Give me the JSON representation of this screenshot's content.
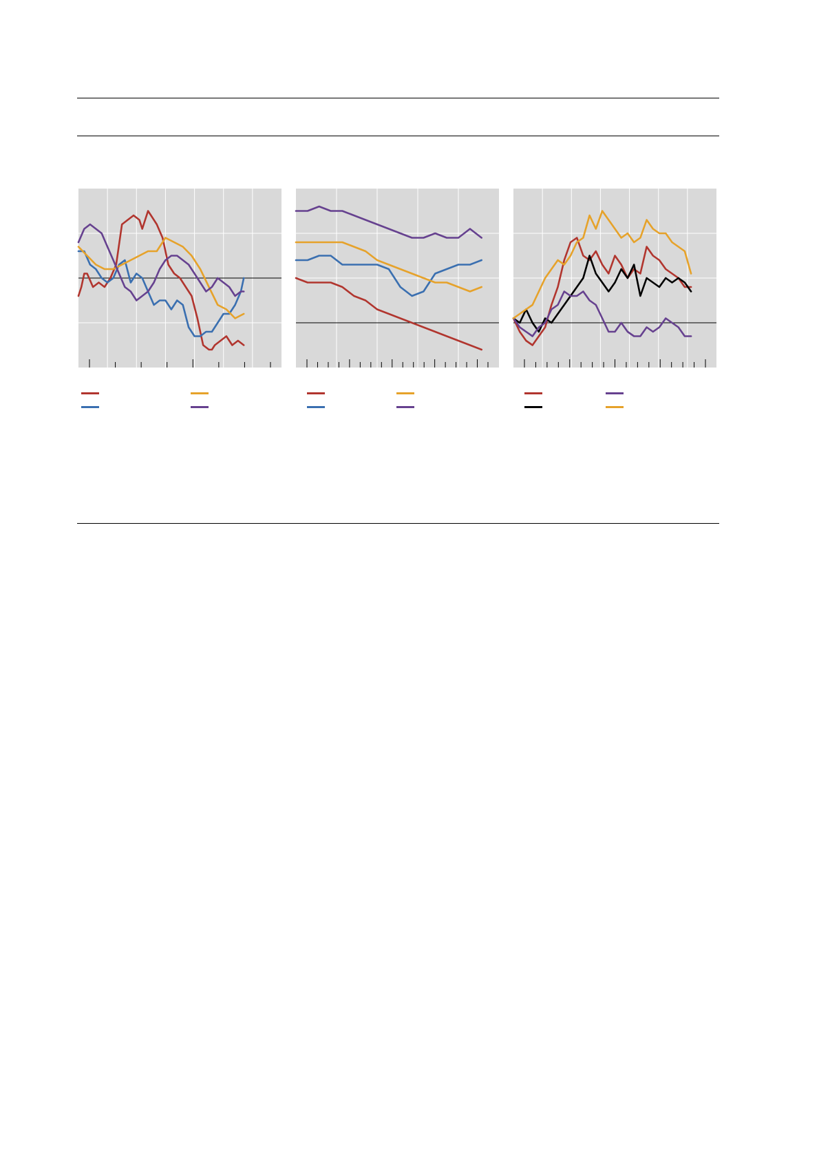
{
  "page": {
    "title": "",
    "subtitle": ""
  },
  "colors": {
    "plot_bg": "#d9d9d9",
    "grid": "#ffffff",
    "axis": "#000000",
    "red": "#b1352e",
    "blue": "#3a6fb0",
    "orange": "#e6a22a",
    "purple": "#66418f",
    "black": "#000000"
  },
  "chart_data": [
    {
      "type": "line",
      "title": "",
      "xlabel": "",
      "ylabel": "",
      "xlim": [
        0,
        7
      ],
      "ylim": [
        -2,
        2
      ],
      "baseline": 0,
      "grid": true,
      "legend": "bottom",
      "series": [
        {
          "name": "",
          "color": "red",
          "x": [
            0,
            0.1,
            0.2,
            0.3,
            0.5,
            0.7,
            0.9,
            1.1,
            1.3,
            1.5,
            1.7,
            1.9,
            2.1,
            2.2,
            2.4,
            2.5,
            2.7,
            2.9,
            3.1,
            3.3,
            3.5,
            3.7,
            3.9,
            4.1,
            4.3,
            4.5,
            4.6,
            4.7,
            4.9,
            5.1,
            5.3,
            5.5,
            5.7
          ],
          "y": [
            -0.4,
            -0.2,
            0.1,
            0.1,
            -0.2,
            -0.1,
            -0.2,
            0,
            0.3,
            1.2,
            1.3,
            1.4,
            1.3,
            1.1,
            1.5,
            1.4,
            1.2,
            0.9,
            0.3,
            0.1,
            0,
            -0.2,
            -0.4,
            -0.9,
            -1.5,
            -1.6,
            -1.6,
            -1.5,
            -1.4,
            -1.3,
            -1.5,
            -1.4,
            -1.5
          ]
        },
        {
          "name": "",
          "color": "blue",
          "x": [
            0,
            0.2,
            0.4,
            0.6,
            0.8,
            1,
            1.2,
            1.4,
            1.6,
            1.8,
            2,
            2.2,
            2.4,
            2.6,
            2.8,
            3,
            3.2,
            3.4,
            3.6,
            3.8,
            4,
            4.2,
            4.4,
            4.6,
            4.8,
            5,
            5.2,
            5.4,
            5.6,
            5.7
          ],
          "y": [
            0.6,
            0.6,
            0.3,
            0.2,
            0,
            -0.1,
            0,
            0.3,
            0.4,
            -0.1,
            0.1,
            0,
            -0.3,
            -0.6,
            -0.5,
            -0.5,
            -0.7,
            -0.5,
            -0.6,
            -1.1,
            -1.3,
            -1.3,
            -1.2,
            -1.2,
            -1.0,
            -0.8,
            -0.8,
            -0.6,
            -0.3,
            0
          ]
        },
        {
          "name": "",
          "color": "orange",
          "x": [
            0,
            0.3,
            0.6,
            0.9,
            1.2,
            1.5,
            1.8,
            2.1,
            2.4,
            2.7,
            3,
            3.3,
            3.6,
            3.9,
            4.2,
            4.5,
            4.8,
            5.1,
            5.4,
            5.7
          ],
          "y": [
            0.7,
            0.5,
            0.3,
            0.2,
            0.2,
            0.3,
            0.4,
            0.5,
            0.6,
            0.6,
            0.9,
            0.8,
            0.7,
            0.5,
            0.2,
            -0.2,
            -0.6,
            -0.7,
            -0.9,
            -0.8
          ]
        },
        {
          "name": "",
          "color": "purple",
          "x": [
            0,
            0.2,
            0.4,
            0.6,
            0.8,
            1,
            1.2,
            1.4,
            1.6,
            1.8,
            2,
            2.2,
            2.4,
            2.6,
            2.8,
            3,
            3.2,
            3.4,
            3.6,
            3.8,
            4,
            4.2,
            4.4,
            4.6,
            4.8,
            5,
            5.2,
            5.4,
            5.6,
            5.7
          ],
          "y": [
            0.8,
            1.1,
            1.2,
            1.1,
            1.0,
            0.7,
            0.4,
            0.1,
            -0.2,
            -0.3,
            -0.5,
            -0.4,
            -0.3,
            -0.1,
            0.2,
            0.4,
            0.5,
            0.5,
            0.4,
            0.3,
            0.1,
            -0.1,
            -0.3,
            -0.2,
            0,
            -0.1,
            -0.2,
            -0.4,
            -0.3,
            -0.3
          ]
        }
      ]
    },
    {
      "type": "line",
      "title": "",
      "xlabel": "",
      "ylabel": "",
      "xlim": [
        0,
        17.5
      ],
      "ylim": [
        -2,
        2
      ],
      "baseline": -1,
      "grid": true,
      "legend": "bottom",
      "series": [
        {
          "name": "",
          "color": "red",
          "x": [
            0,
            1,
            2,
            3,
            4,
            5,
            6,
            7,
            8,
            9,
            10,
            11,
            12,
            13,
            14,
            15,
            16
          ],
          "y": [
            0,
            -0.1,
            -0.1,
            -0.1,
            -0.2,
            -0.4,
            -0.5,
            -0.7,
            -0.8,
            -0.9,
            -1.0,
            -1.1,
            -1.2,
            -1.3,
            -1.4,
            -1.5,
            -1.6
          ]
        },
        {
          "name": "",
          "color": "blue",
          "x": [
            0,
            1,
            2,
            3,
            4,
            5,
            6,
            7,
            8,
            9,
            10,
            11,
            12,
            13,
            14,
            15,
            16
          ],
          "y": [
            0.4,
            0.4,
            0.5,
            0.5,
            0.3,
            0.3,
            0.3,
            0.3,
            0.2,
            -0.2,
            -0.4,
            -0.3,
            0.1,
            0.2,
            0.3,
            0.3,
            0.4
          ]
        },
        {
          "name": "",
          "color": "orange",
          "x": [
            0,
            1,
            2,
            3,
            4,
            5,
            6,
            7,
            8,
            9,
            10,
            11,
            12,
            13,
            14,
            15,
            16
          ],
          "y": [
            0.8,
            0.8,
            0.8,
            0.8,
            0.8,
            0.7,
            0.6,
            0.4,
            0.3,
            0.2,
            0.1,
            0,
            -0.1,
            -0.1,
            -0.2,
            -0.3,
            -0.2
          ]
        },
        {
          "name": "",
          "color": "purple",
          "x": [
            0,
            1,
            2,
            3,
            4,
            5,
            6,
            7,
            8,
            9,
            10,
            11,
            12,
            13,
            14,
            15,
            16
          ],
          "y": [
            1.5,
            1.5,
            1.6,
            1.5,
            1.5,
            1.4,
            1.3,
            1.2,
            1.1,
            1.0,
            0.9,
            0.9,
            1.0,
            0.9,
            0.9,
            1.1,
            0.9
          ]
        }
      ]
    },
    {
      "type": "line",
      "title": "",
      "xlabel": "",
      "ylabel": "",
      "xlim": [
        0,
        16
      ],
      "ylim": [
        -2,
        2
      ],
      "baseline": -1,
      "grid": true,
      "legend": "bottom",
      "series": [
        {
          "name": "",
          "color": "red",
          "x": [
            0,
            0.5,
            1,
            1.5,
            2,
            2.5,
            3,
            3.5,
            4,
            4.5,
            5,
            5.5,
            6,
            6.5,
            7,
            7.5,
            8,
            8.5,
            9,
            9.5,
            10,
            10.5,
            11,
            11.5,
            12,
            12.5,
            13,
            13.5,
            14
          ],
          "y": [
            -0.9,
            -1.2,
            -1.4,
            -1.5,
            -1.3,
            -1.1,
            -0.6,
            -0.2,
            0.4,
            0.8,
            0.9,
            0.5,
            0.4,
            0.6,
            0.3,
            0.1,
            0.5,
            0.3,
            0,
            0.2,
            0.1,
            0.7,
            0.5,
            0.4,
            0.2,
            0.1,
            0,
            -0.2,
            -0.2
          ]
        },
        {
          "name": "",
          "color": "black",
          "x": [
            0,
            0.5,
            1,
            1.5,
            2,
            2.5,
            3,
            3.5,
            4,
            4.5,
            5,
            5.5,
            6,
            6.5,
            7,
            7.5,
            8,
            8.5,
            9,
            9.5,
            10,
            10.5,
            11,
            11.5,
            12,
            12.5,
            13,
            13.5,
            14
          ],
          "y": [
            -0.9,
            -1.0,
            -0.7,
            -1.0,
            -1.2,
            -0.9,
            -1.0,
            -0.8,
            -0.6,
            -0.4,
            -0.2,
            0,
            0.5,
            0.1,
            -0.1,
            -0.3,
            -0.1,
            0.2,
            0,
            0.3,
            -0.4,
            0,
            -0.1,
            -0.2,
            0,
            -0.1,
            0,
            -0.1,
            -0.3
          ]
        },
        {
          "name": "",
          "color": "purple",
          "x": [
            0,
            0.5,
            1,
            1.5,
            2,
            2.5,
            3,
            3.5,
            4,
            4.5,
            5,
            5.5,
            6,
            6.5,
            7,
            7.5,
            8,
            8.5,
            9,
            9.5,
            10,
            10.5,
            11,
            11.5,
            12,
            12.5,
            13,
            13.5,
            14
          ],
          "y": [
            -0.9,
            -1.1,
            -1.2,
            -1.3,
            -1.1,
            -1.0,
            -0.7,
            -0.6,
            -0.3,
            -0.4,
            -0.4,
            -0.3,
            -0.5,
            -0.6,
            -0.9,
            -1.2,
            -1.2,
            -1.0,
            -1.2,
            -1.3,
            -1.3,
            -1.1,
            -1.2,
            -1.1,
            -0.9,
            -1.0,
            -1.1,
            -1.3,
            -1.3
          ]
        },
        {
          "name": "",
          "color": "orange",
          "x": [
            0,
            0.5,
            1,
            1.5,
            2,
            2.5,
            3,
            3.5,
            4,
            4.5,
            5,
            5.5,
            6,
            6.5,
            7,
            7.5,
            8,
            8.5,
            9,
            9.5,
            10,
            10.5,
            11,
            11.5,
            12,
            12.5,
            13,
            13.5,
            14
          ],
          "y": [
            -0.9,
            -0.8,
            -0.7,
            -0.6,
            -0.3,
            0,
            0.2,
            0.4,
            0.3,
            0.5,
            0.8,
            0.9,
            1.4,
            1.1,
            1.5,
            1.3,
            1.1,
            0.9,
            1.0,
            0.8,
            0.9,
            1.3,
            1.1,
            1.0,
            1.0,
            0.8,
            0.7,
            0.6,
            0.1
          ]
        }
      ]
    }
  ]
}
